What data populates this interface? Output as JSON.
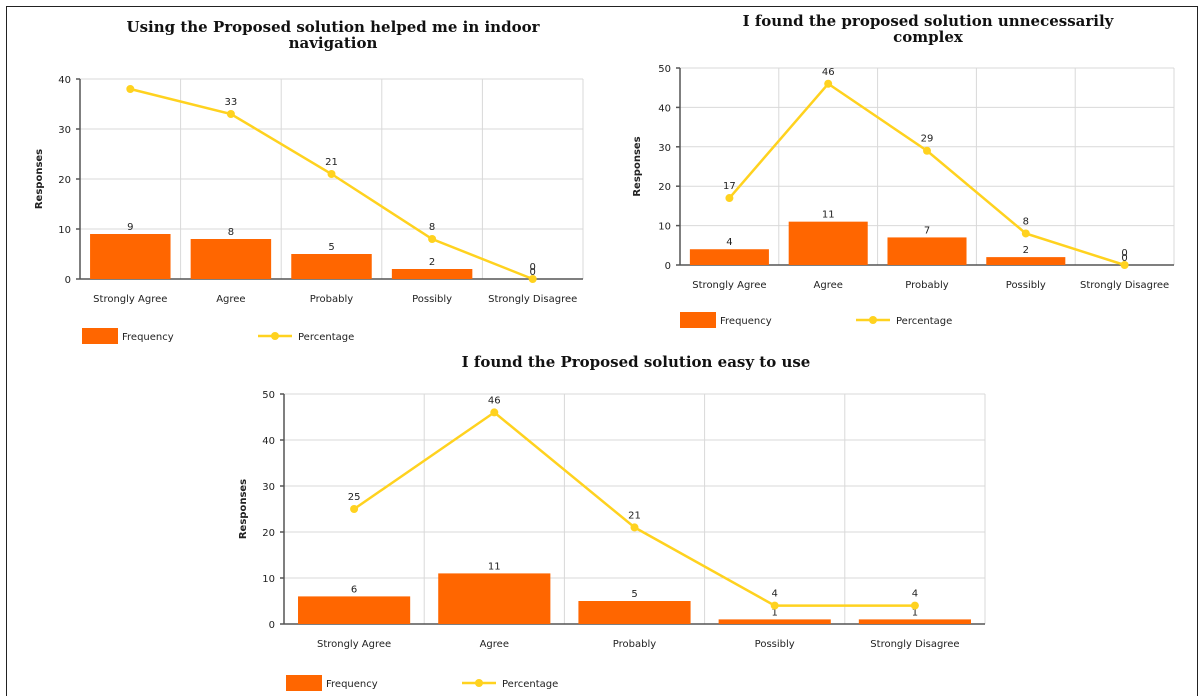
{
  "chart_data": [
    {
      "type": "bar",
      "title_lines": [
        "Using the Proposed solution helped me in indoor",
        "navigation"
      ],
      "categories": [
        "Strongly Agree",
        "Agree",
        "Probably",
        "Possibly",
        "Strongly Disagree"
      ],
      "ylabel": "Responses",
      "ylim": [
        0,
        40
      ],
      "yticks": [
        0,
        10,
        20,
        30,
        40
      ],
      "grid": true,
      "legend_position": "bottom-left",
      "series": [
        {
          "name": "Frequency",
          "type": "bar",
          "values": [
            9,
            8,
            5,
            2,
            0
          ],
          "color": "#ff6600"
        },
        {
          "name": "Percentage",
          "type": "line",
          "values": [
            38,
            33,
            21,
            8,
            0
          ],
          "labels": [
            "",
            "33",
            "21",
            "8",
            "0"
          ],
          "color": "#ffd21f"
        }
      ]
    },
    {
      "type": "bar",
      "title_lines": [
        "I found the proposed solution unnecessarily",
        "complex"
      ],
      "categories": [
        "Strongly Agree",
        "Agree",
        "Probably",
        "Possibly",
        "Strongly Disagree"
      ],
      "ylabel": "Responses",
      "ylim": [
        0,
        50
      ],
      "yticks": [
        0,
        10,
        20,
        30,
        40,
        50
      ],
      "grid": true,
      "legend_position": "bottom-left",
      "series": [
        {
          "name": "Frequency",
          "type": "bar",
          "values": [
            4,
            11,
            7,
            2,
            0
          ],
          "color": "#ff6600"
        },
        {
          "name": "Percentage",
          "type": "line",
          "values": [
            17,
            46,
            29,
            8,
            0
          ],
          "labels": [
            "17",
            "46",
            "29",
            "8",
            "0"
          ],
          "color": "#ffd21f"
        }
      ]
    },
    {
      "type": "bar",
      "title_lines": [
        "I found the Proposed solution easy to use"
      ],
      "categories": [
        "Strongly Agree",
        "Agree",
        "Probably",
        "Possibly",
        "Strongly Disagree"
      ],
      "ylabel": "Responses",
      "ylim": [
        0,
        50
      ],
      "yticks": [
        0,
        10,
        20,
        30,
        40,
        50
      ],
      "grid": true,
      "legend_position": "bottom-left",
      "series": [
        {
          "name": "Frequency",
          "type": "bar",
          "values": [
            6,
            11,
            5,
            1,
            1
          ],
          "color": "#ff6600"
        },
        {
          "name": "Percentage",
          "type": "line",
          "values": [
            25,
            46,
            21,
            4,
            4
          ],
          "labels": [
            "25",
            "46",
            "21",
            "4",
            "4"
          ],
          "color": "#ffd21f"
        }
      ]
    }
  ]
}
